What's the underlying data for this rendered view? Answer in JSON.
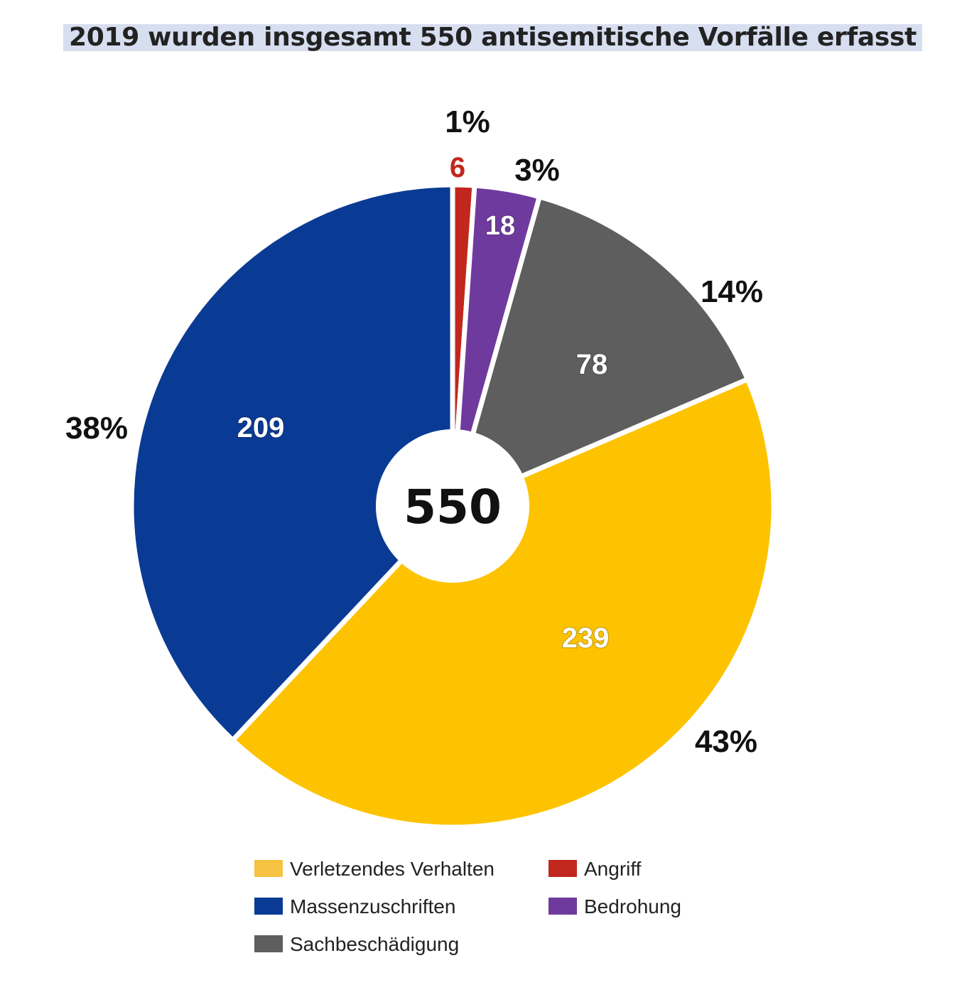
{
  "title": "2019 wurden insgesamt 550 antisemitische Vorfälle erfasst",
  "chart_data": {
    "type": "pie",
    "subtype": "donut",
    "center_label": "550",
    "total": 550,
    "slices": [
      {
        "name": "Angriff",
        "value": 6,
        "percent_label": "1%",
        "color": "#c1271d"
      },
      {
        "name": "Bedrohung",
        "value": 18,
        "percent_label": "3%",
        "color": "#6f3a9e"
      },
      {
        "name": "Sachbeschädigung",
        "value": 78,
        "percent_label": "14%",
        "color": "#5e5e5e"
      },
      {
        "name": "Verletzendes Verhalten",
        "value": 239,
        "percent_label": "43%",
        "color": "#fdc300"
      },
      {
        "name": "Massenzuschriften",
        "value": 209,
        "percent_label": "38%",
        "color": "#0a3b94"
      }
    ],
    "legend": [
      {
        "label": "Verletzendes Verhalten",
        "color": "#f5c242"
      },
      {
        "label": "Angriff",
        "color": "#c1271d"
      },
      {
        "label": "Massenzuschriften",
        "color": "#0a3b94"
      },
      {
        "label": "Bedrohung",
        "color": "#6f3a9e"
      },
      {
        "label": "Sachbeschädigung",
        "color": "#5e5e5e"
      }
    ],
    "legend_position": "bottom"
  }
}
